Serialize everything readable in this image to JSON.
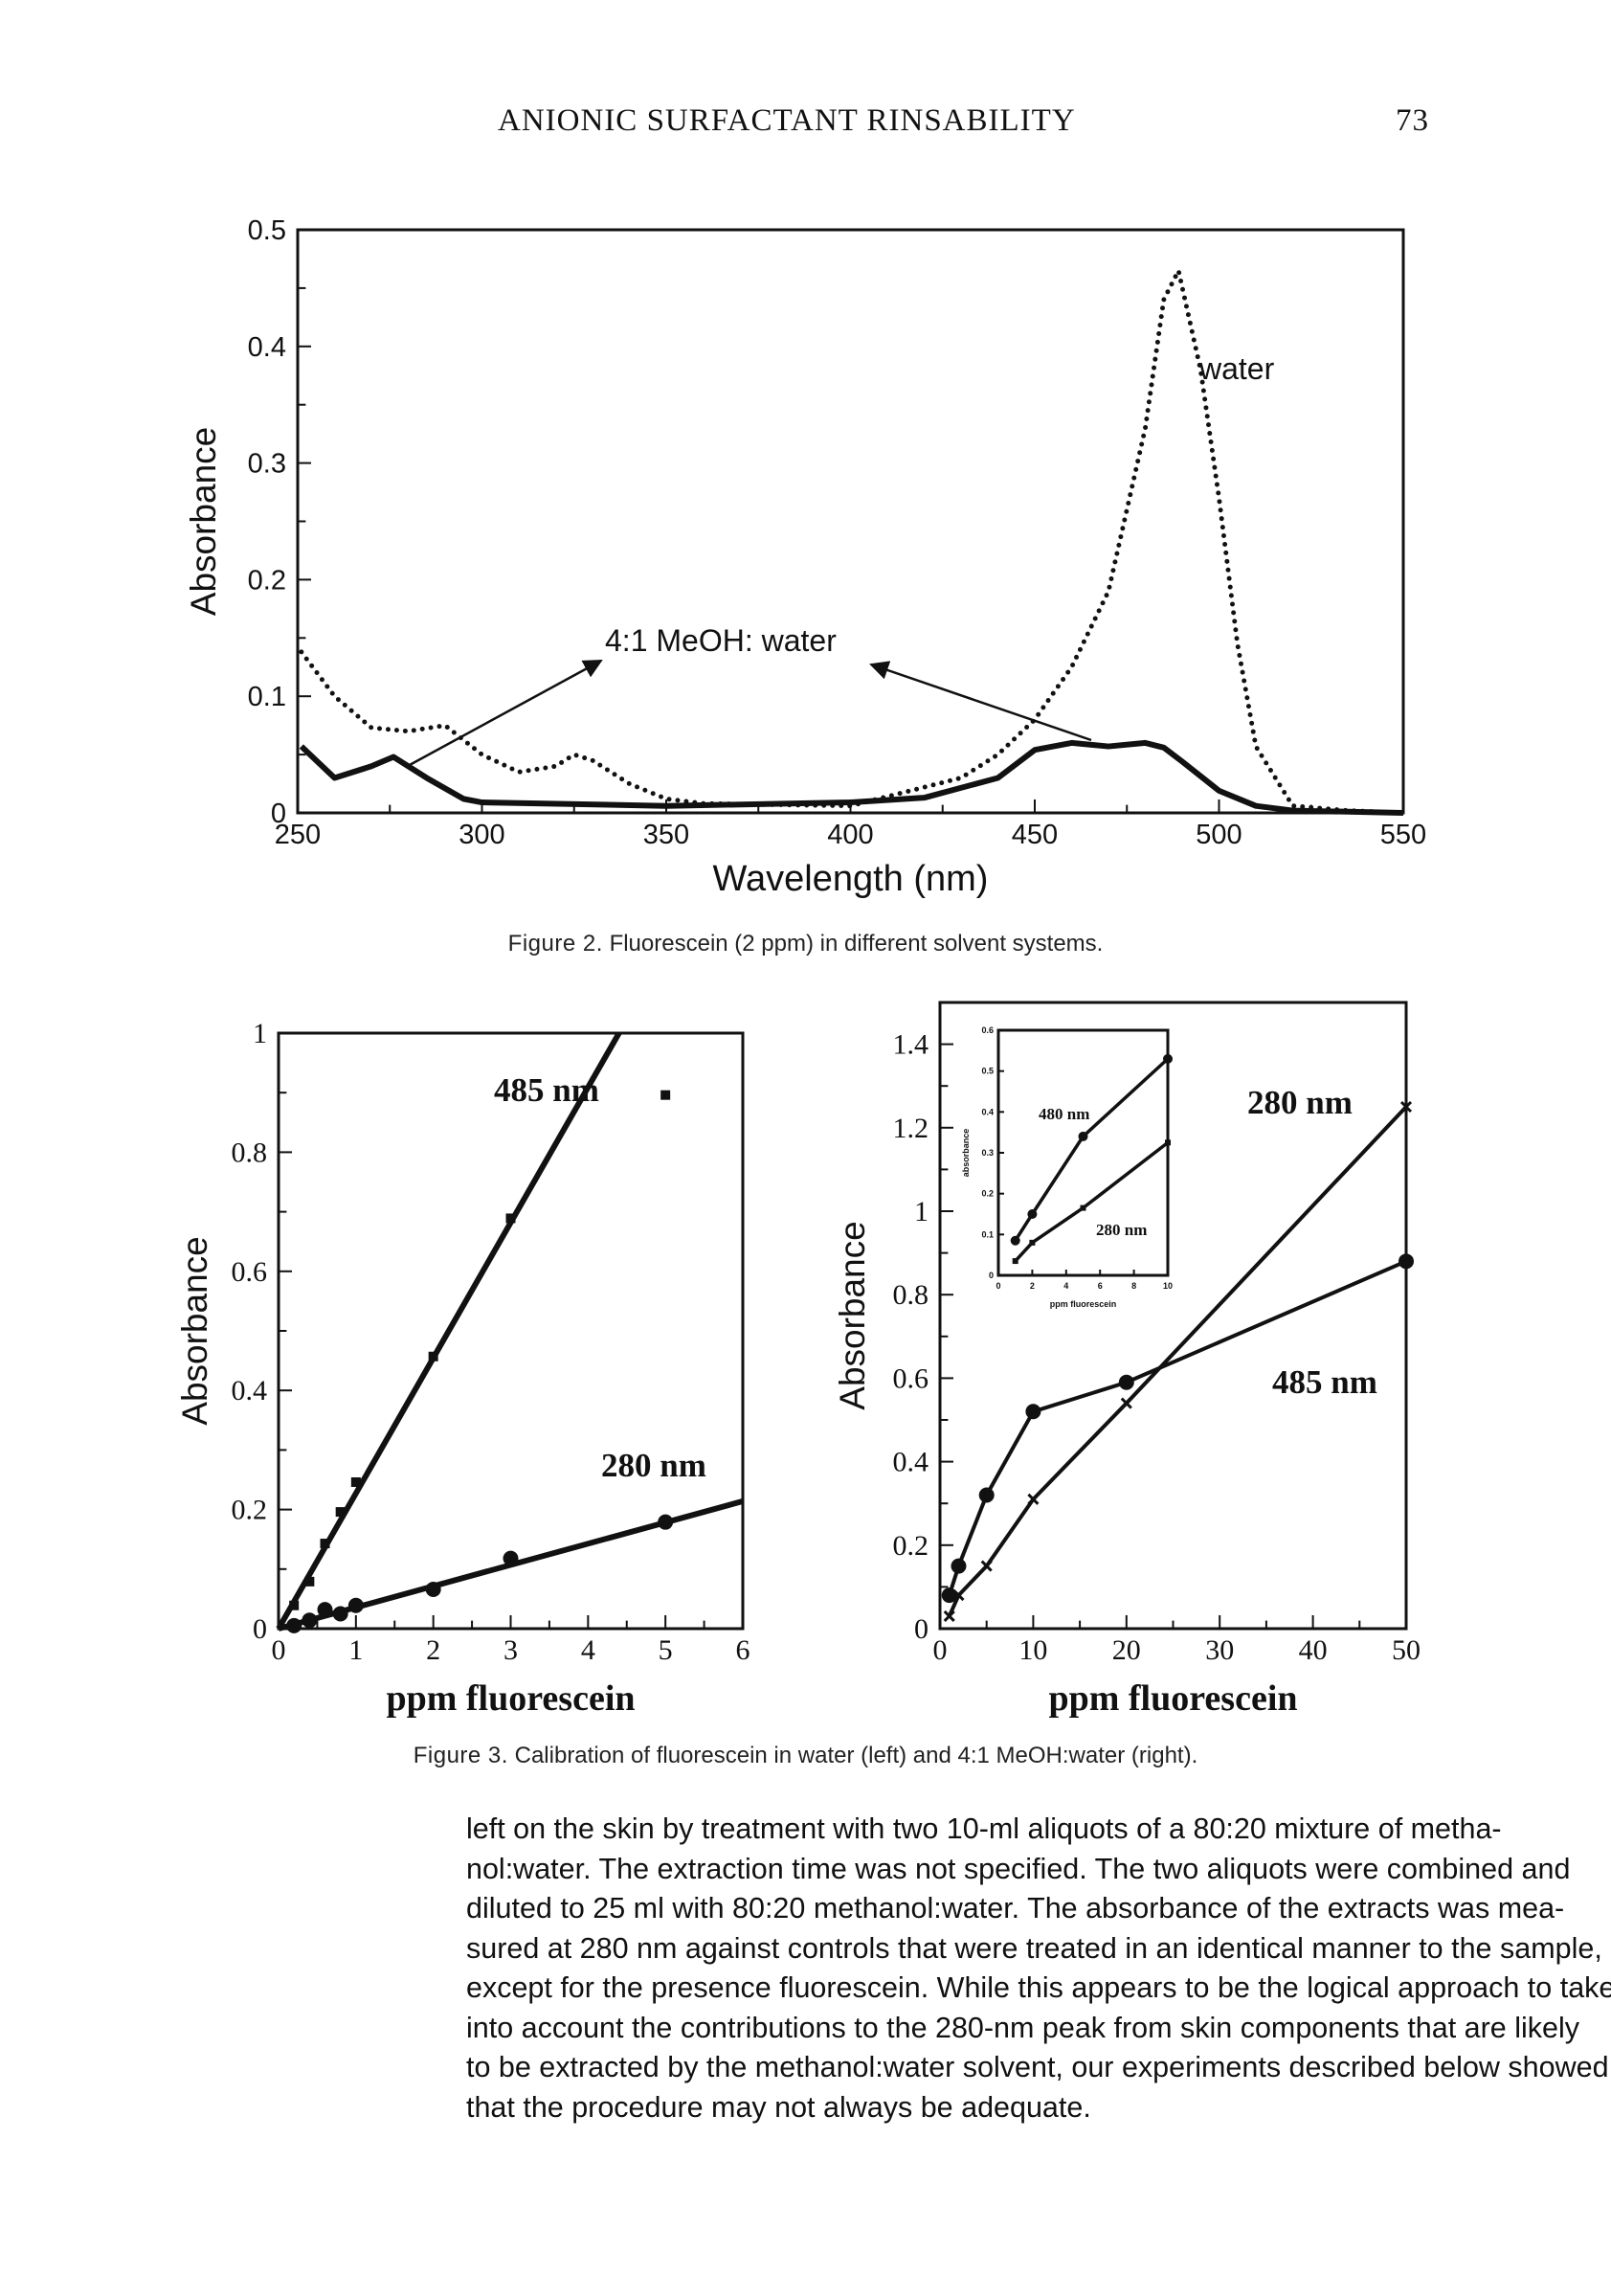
{
  "header": {
    "running_title": "ANIONIC SURFACTANT RINSABILITY",
    "page_number": "73"
  },
  "captions": {
    "fig2_label": "Figure 2.",
    "fig2_text": "Fluorescein (2 ppm) in different solvent systems.",
    "fig3_label": "Figure 3.",
    "fig3_text": "Calibration of fluorescein in water (left) and 4:1 MeOH:water (right)."
  },
  "body_lines": [
    "left on the skin by treatment with two 10-ml aliquots of a 80:20 mixture of metha-",
    "nol:water. The extraction time was not specified. The two aliquots were combined and",
    "diluted to 25 ml with 80:20 methanol:water. The absorbance of the extracts was mea-",
    "sured at 280 nm against controls that were treated in an identical manner to the sample,",
    "except for the presence fluorescein. While this appears to be the logical approach to take",
    "into account the contributions to the 280-nm peak from skin components that are likely",
    "to be extracted by the methanol:water solvent, our experiments described below showed",
    "that the procedure may not always be adequate."
  ],
  "chart_data": [
    {
      "id": "fig2",
      "type": "line",
      "xlabel": "Wavelength (nm)",
      "ylabel": "Absorbance",
      "xlim": [
        250,
        550
      ],
      "ylim": [
        0,
        0.5
      ],
      "xticks": [
        250,
        300,
        350,
        400,
        450,
        500,
        550
      ],
      "xtick_labels": [
        "250",
        "300",
        "350",
        "400",
        "450",
        "500",
        "550"
      ],
      "yticks": [
        0,
        0.1,
        0.2,
        0.3,
        0.4,
        0.5
      ],
      "ytick_labels": [
        "0",
        "0.1",
        "0.2",
        "0.3",
        "0.4",
        "0.5"
      ],
      "series": [
        {
          "name": "water",
          "style": "dotted",
          "x": [
            251,
            260,
            270,
            280,
            290,
            300,
            310,
            320,
            325,
            330,
            340,
            350,
            360,
            400,
            430,
            440,
            450,
            460,
            470,
            480,
            485,
            489,
            495,
            500,
            505,
            510,
            520,
            535,
            550
          ],
          "y": [
            0.138,
            0.1,
            0.073,
            0.07,
            0.075,
            0.05,
            0.035,
            0.04,
            0.05,
            0.045,
            0.025,
            0.012,
            0.008,
            0.006,
            0.03,
            0.05,
            0.08,
            0.125,
            0.19,
            0.33,
            0.44,
            0.465,
            0.38,
            0.27,
            0.145,
            0.057,
            0.006,
            0.002,
            0
          ]
        },
        {
          "name": "4:1 MeOH: water",
          "style": "solid",
          "x": [
            251,
            260,
            270,
            276,
            285,
            295,
            300,
            350,
            400,
            420,
            440,
            450,
            460,
            470,
            480,
            485,
            490,
            500,
            510,
            520,
            550
          ],
          "y": [
            0.057,
            0.03,
            0.04,
            0.048,
            0.03,
            0.012,
            0.009,
            0.006,
            0.009,
            0.013,
            0.03,
            0.054,
            0.06,
            0.057,
            0.06,
            0.056,
            0.044,
            0.019,
            0.006,
            0.002,
            0
          ]
        }
      ],
      "annotations": [
        "water",
        "4:1 MeOH: water"
      ]
    },
    {
      "id": "fig3_left",
      "type": "scatter",
      "xlabel": "ppm fluorescein",
      "ylabel": "Absorbance",
      "xlim": [
        0,
        6
      ],
      "ylim": [
        0,
        1
      ],
      "xticks": [
        0,
        1,
        2,
        3,
        4,
        5,
        6
      ],
      "xtick_labels": [
        "0",
        "1",
        "2",
        "3",
        "4",
        "5",
        "6"
      ],
      "yticks": [
        0,
        0.2,
        0.4,
        0.6,
        0.8,
        1
      ],
      "ytick_labels": [
        "0",
        "0.2",
        "0.4",
        "0.6",
        "0.8",
        "1"
      ],
      "series": [
        {
          "name": "485 nm",
          "marker": "square",
          "x": [
            0.2,
            0.4,
            0.6,
            0.8,
            1,
            2,
            3,
            5
          ],
          "y": [
            0.039,
            0.079,
            0.143,
            0.196,
            0.246,
            0.457,
            0.689,
            0.896
          ],
          "fit": [
            [
              0,
              0
            ],
            [
              4.4,
              1
            ]
          ]
        },
        {
          "name": "280 nm",
          "marker": "circle",
          "x": [
            0.2,
            0.4,
            0.6,
            0.8,
            1,
            2,
            3,
            5
          ],
          "y": [
            0.005,
            0.014,
            0.032,
            0.025,
            0.039,
            0.066,
            0.118,
            0.179
          ],
          "fit": [
            [
              0,
              0
            ],
            [
              6,
              0.214
            ]
          ]
        }
      ]
    },
    {
      "id": "fig3_right",
      "type": "line",
      "xlabel": "ppm fluorescein",
      "ylabel": "Absorbance",
      "xlim": [
        0,
        50
      ],
      "ylim": [
        0,
        1.5
      ],
      "xticks": [
        0,
        10,
        20,
        30,
        40,
        50
      ],
      "xtick_labels": [
        "0",
        "10",
        "20",
        "30",
        "40",
        "50"
      ],
      "yticks": [
        0,
        0.2,
        0.4,
        0.6,
        0.8,
        1,
        1.2,
        1.4
      ],
      "ytick_labels": [
        "0",
        "0.2",
        "0.4",
        "0.6",
        "0.8",
        "1",
        "1.2",
        "1.4"
      ],
      "series": [
        {
          "name": "280 nm",
          "marker": "x",
          "x": [
            1,
            2,
            5,
            10,
            20,
            50
          ],
          "y": [
            0.03,
            0.08,
            0.15,
            0.31,
            0.54,
            1.25
          ]
        },
        {
          "name": "485 nm",
          "marker": "circle",
          "x": [
            1,
            2,
            5,
            10,
            20,
            50
          ],
          "y": [
            0.08,
            0.15,
            0.32,
            0.52,
            0.59,
            0.88
          ]
        }
      ]
    },
    {
      "id": "fig3_inset",
      "type": "line",
      "xlabel": "ppm fluorescein",
      "ylabel": "absorbance",
      "xlim": [
        0,
        10
      ],
      "ylim": [
        0,
        0.6
      ],
      "xticks": [
        0,
        2,
        4,
        6,
        8,
        10
      ],
      "xtick_labels": [
        "0",
        "2",
        "4",
        "6",
        "8",
        "10"
      ],
      "yticks": [
        0,
        0.1,
        0.2,
        0.3,
        0.4,
        0.5,
        0.6
      ],
      "ytick_labels": [
        "0",
        "0.1",
        "0.2",
        "0.3",
        "0.4",
        "0.5",
        "0.6"
      ],
      "series": [
        {
          "name": "480 nm",
          "marker": "circle",
          "x": [
            1,
            2,
            5,
            10
          ],
          "y": [
            0.085,
            0.15,
            0.34,
            0.53
          ]
        },
        {
          "name": "280 nm",
          "marker": "square",
          "x": [
            1,
            2,
            5,
            10
          ],
          "y": [
            0.035,
            0.08,
            0.165,
            0.325
          ]
        }
      ]
    }
  ]
}
